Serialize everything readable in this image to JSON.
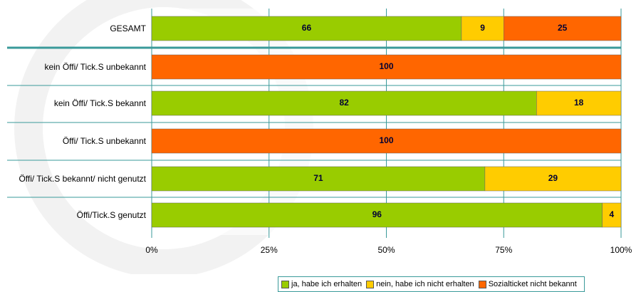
{
  "chart_data": {
    "type": "stacked-barh",
    "categories": [
      "GESAMT",
      "kein Öffi/ Tick.S unbekannt",
      "kein Öffi/ Tick.S bekannt",
      "Öffi/ Tick.S unbekannt",
      "Öffi/ Tick.S bekannt/ nicht genutzt",
      "Öffi/Tick.S genutzt"
    ],
    "series": [
      {
        "name": "ja, habe ich erhalten",
        "color": "#99cc00",
        "values": [
          66,
          null,
          82,
          null,
          71,
          96
        ]
      },
      {
        "name": "nein, habe ich nicht erhalten",
        "color": "#ffcc00",
        "values": [
          9,
          null,
          18,
          null,
          29,
          4
        ]
      },
      {
        "name": "Sozialticket nicht bekannt",
        "color": "#ff6600",
        "values": [
          25,
          100,
          null,
          100,
          null,
          null
        ]
      }
    ],
    "xlim": [
      0,
      100
    ],
    "xticks": [
      {
        "value": 0,
        "label": "0%"
      },
      {
        "value": 25,
        "label": "25%"
      },
      {
        "value": 50,
        "label": "50%"
      },
      {
        "value": 75,
        "label": "75%"
      },
      {
        "value": 100,
        "label": "100%"
      }
    ],
    "grid": true,
    "legend": "bottom"
  }
}
